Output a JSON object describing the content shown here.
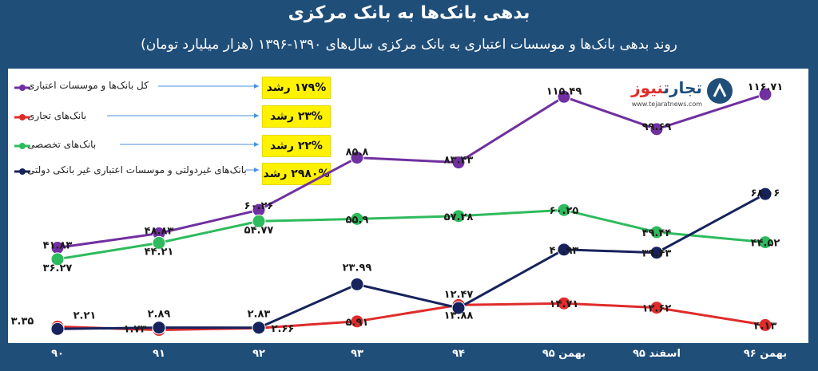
{
  "title": "بدهی بانک‌ها به بانک مرکزی",
  "subtitle": "روند بدهی بانک‌ها و موسسات اعتباری به بانک مرکزی سال‌های ۱۳۹۰-۱۳۹۶ (هزار میلیارد تومان)",
  "logo": {
    "name_part1": "تجارت",
    "name_part2": "نیوز",
    "url": "www.tejaratnews.com"
  },
  "colors": {
    "background": "#1f4e79",
    "purple": "#7030a0",
    "red": "#e02b2b",
    "green": "#2dbb5d",
    "navy": "#16235c",
    "highlight": "#fff200"
  },
  "legend": [
    {
      "label": "کل بانک‌ها و موسسات اعتباری",
      "growth": "۱۷۹% رشد",
      "color": "#7030a0"
    },
    {
      "label": "بانک‌های تجاری",
      "growth": "۲۳% رشد",
      "color": "#e02b2b"
    },
    {
      "label": "بانک‌های تخصصی",
      "growth": "۲۲% رشد",
      "color": "#2dbb5d"
    },
    {
      "label": "بانک‌های غیردولتی و موسسات اعتباری غیر بانکی دولتی",
      "growth": "۲۹۸۰% رشد",
      "color": "#16235c"
    }
  ],
  "chart_data": {
    "type": "line",
    "categories": [
      "۹۰",
      "۹۱",
      "۹۲",
      "۹۳",
      "۹۴",
      "بهمن ۹۵",
      "اسفند ۹۵",
      "بهمن ۹۶"
    ],
    "ylim": [
      0,
      130
    ],
    "grid": false,
    "legend_placement": "top-left",
    "series": [
      {
        "name": "کل بانک‌ها و موسسات اعتباری",
        "color": "#7030a0",
        "values": [
          41.83,
          48.83,
          60.26,
          85.8,
          83.43,
          115.49,
          99.69,
          116.71
        ],
        "labels": [
          "۴۱.۸۳",
          "۴۸.۸۳",
          "۶۰.۲۶",
          "۸۵.۸",
          "۸۳.۴۳",
          "۱۱۵.۴۹",
          "۹۹.۶۹",
          "۱۱۶.۷۱"
        ]
      },
      {
        "name": "بانک‌های تخصصی",
        "color": "#2dbb5d",
        "values": [
          36.27,
          44.21,
          54.77,
          55.9,
          57.28,
          60.25,
          49.44,
          44.52
        ],
        "labels": [
          "۳۶.۲۷",
          "۴۴.۲۱",
          "۵۴.۷۷",
          "۵۵.۹",
          "۵۷.۲۸",
          "۶۰.۲۵",
          "۴۹.۴۴",
          "۴۴.۵۲"
        ]
      },
      {
        "name": "بانک‌های تجاری",
        "color": "#e02b2b",
        "values": [
          3.35,
          1.73,
          2.66,
          5.91,
          13.88,
          14.71,
          12.62,
          4.13
        ],
        "labels": [
          "۳.۳۵",
          "۱.۷۳",
          "۲.۶۶",
          "۵.۹۱",
          "۱۳.۸۸",
          "۱۴.۷۱",
          "۱۲.۶۲",
          "۴.۱۳"
        ]
      },
      {
        "name": "بانک‌های غیردولتی و موسسات اعتباری غیر بانکی دولتی",
        "color": "#16235c",
        "values": [
          2.21,
          2.89,
          2.83,
          23.99,
          12.47,
          40.93,
          39.43,
          68.06
        ],
        "labels": [
          "۲.۲۱",
          "۲.۸۹",
          "۲.۸۳",
          "۲۳.۹۹",
          "۱۲.۴۷",
          "۴۰.۹۳",
          "۳۹.۴۳",
          "۶۸.۰۶"
        ]
      }
    ]
  }
}
